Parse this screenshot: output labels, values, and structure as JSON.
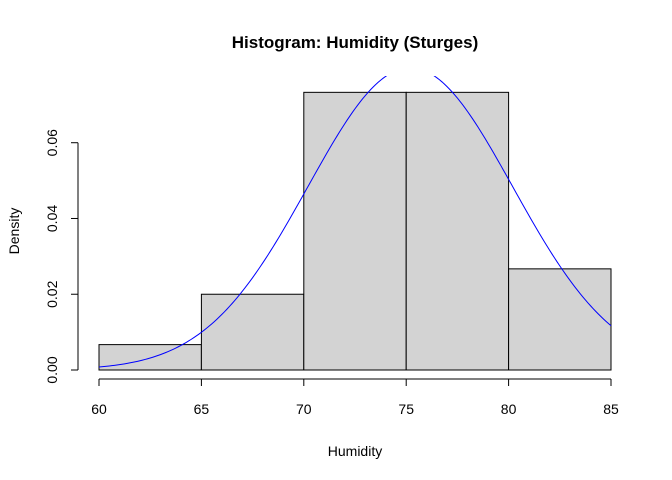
{
  "chart_data": {
    "type": "bar",
    "title": "Histogram: Humidity (Sturges)",
    "xlabel": "Humidity",
    "ylabel": "Density",
    "bins": [
      {
        "from": 60,
        "to": 65,
        "density": 0.0067
      },
      {
        "from": 65,
        "to": 70,
        "density": 0.02
      },
      {
        "from": 70,
        "to": 75,
        "density": 0.0733
      },
      {
        "from": 75,
        "to": 80,
        "density": 0.0733
      },
      {
        "from": 80,
        "to": 85,
        "density": 0.0267
      }
    ],
    "xlim": [
      60,
      85
    ],
    "ylim": [
      0,
      0.0755
    ],
    "x_ticks": [
      "60",
      "65",
      "70",
      "75",
      "80",
      "85"
    ],
    "y_ticks": [
      "0.00",
      "0.02",
      "0.04",
      "0.06"
    ],
    "density_curve": {
      "name": "normal density",
      "color": "#0000ff",
      "mean": 75.2,
      "sd": 5.0
    },
    "bar_color": "#d3d3d3",
    "grid": false,
    "legend": "none"
  }
}
